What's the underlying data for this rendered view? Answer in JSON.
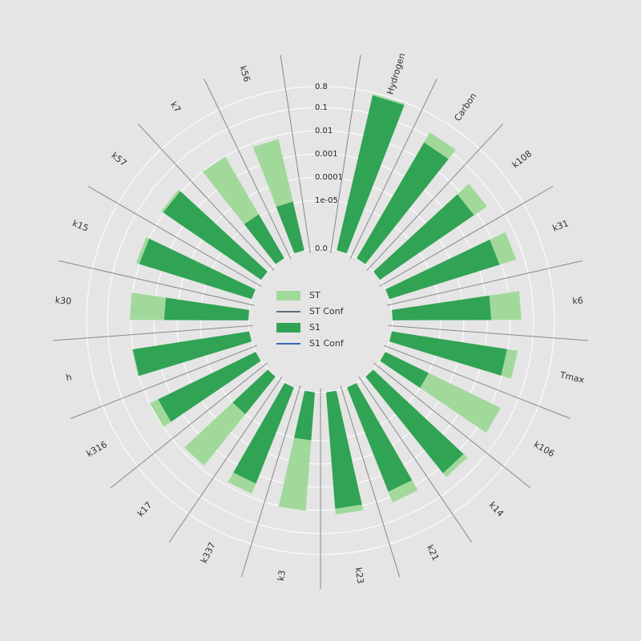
{
  "chart_data": {
    "type": "radial_bar",
    "categories": [
      "Hydrogen",
      "Carbon",
      "k108",
      "k31",
      "k6",
      "Tmax",
      "k106",
      "k14",
      "k21",
      "k23",
      "k3",
      "k337",
      "k17",
      "k316",
      "h",
      "k30",
      "k15",
      "k57",
      "k7",
      "k56"
    ],
    "series": [
      {
        "name": "ST",
        "color": "#a1d99b",
        "values": [
          0.7,
          0.16,
          0.033,
          0.045,
          0.03,
          0.026,
          0.028,
          0.03,
          0.018,
          0.016,
          0.011,
          0.007,
          0.007,
          0.01,
          0.011,
          0.011,
          0.014,
          0.014,
          0.01,
          0.007
        ],
        "conf": {
          "name": "ST Conf",
          "color": "#5b6b7b"
        }
      },
      {
        "name": "S1",
        "color": "#31a354",
        "values": [
          0.6,
          0.05,
          0.007,
          0.008,
          0.0015,
          0.009,
          1e-05,
          0.018,
          0.0057,
          0.009,
          1e-05,
          0.0024,
          1e-05,
          0.004,
          0.01,
          0.00036,
          0.01,
          0.011,
          1.3e-05,
          1.2e-05
        ],
        "conf": {
          "name": "S1 Conf",
          "color": "#3a66b5"
        }
      }
    ],
    "yscale": "symlog",
    "ylim": [
      0,
      0.8
    ],
    "yticks": [
      {
        "value": 0,
        "label": "0.0"
      },
      {
        "value": 1e-05,
        "label": "1e-05"
      },
      0.0001,
      0.001,
      0.01,
      0.1,
      0.8
    ],
    "grid": true,
    "legend": "center"
  }
}
